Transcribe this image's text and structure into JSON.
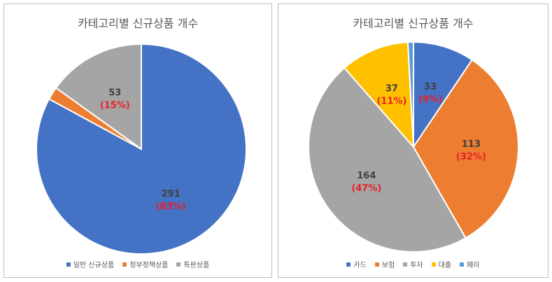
{
  "chart_data": [
    {
      "type": "pie",
      "title": "카테고리별 신규상품 개수",
      "slices": [
        {
          "label": "일반 신규상품",
          "value": 291,
          "pct_label": "(83%)",
          "color": "#4472C4",
          "show_label": true
        },
        {
          "label": "정부정책상품",
          "value": 7,
          "pct_label": "",
          "color": "#ED7D31",
          "show_label": false
        },
        {
          "label": "특판상품",
          "value": 53,
          "pct_label": "(15%)",
          "color": "#A5A5A5",
          "show_label": true
        }
      ],
      "legend_position": "bottom"
    },
    {
      "type": "pie",
      "title": "카테고리별 신규상품 개수",
      "slices": [
        {
          "label": "카드",
          "value": 33,
          "pct_label": "(9%)",
          "color": "#4472C4",
          "show_label": true
        },
        {
          "label": "보험",
          "value": 113,
          "pct_label": "(32%)",
          "color": "#ED7D31",
          "show_label": true
        },
        {
          "label": "투자",
          "value": 164,
          "pct_label": "(47%)",
          "color": "#A5A5A5",
          "show_label": true
        },
        {
          "label": "대출",
          "value": 37,
          "pct_label": "(11%)",
          "color": "#FFC000",
          "show_label": true
        },
        {
          "label": "페이",
          "value": 3,
          "pct_label": "",
          "color": "#5B9BD5",
          "show_label": false
        }
      ],
      "legend_position": "bottom"
    }
  ],
  "style": {
    "value_color": "#404040",
    "pct_color": "#E8202A"
  }
}
